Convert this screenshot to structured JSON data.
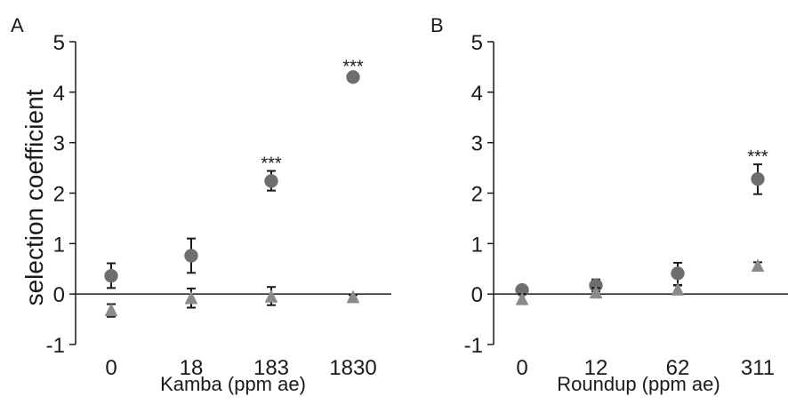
{
  "chart_data": [
    {
      "type": "scatter",
      "panel_label": "A",
      "title": "",
      "xlabel": "Kamba (ppm ae)",
      "ylabel": "selection coefficient",
      "categories": [
        "0",
        "18",
        "183",
        "1830"
      ],
      "ylim": [
        -1,
        5
      ],
      "yticks": [
        "-1",
        "0",
        "1",
        "2",
        "3",
        "4",
        "5"
      ],
      "zero_line": true,
      "series": [
        {
          "marker": "circle",
          "color": "#6e6e6e",
          "values": [
            0.36,
            0.76,
            2.24,
            4.3
          ],
          "err_low": [
            0.12,
            0.42,
            2.05,
            4.25
          ],
          "err_high": [
            0.61,
            1.1,
            2.44,
            4.36
          ]
        },
        {
          "marker": "triangle",
          "color": "#8a8a8a",
          "values": [
            -0.32,
            -0.08,
            -0.05,
            -0.06
          ],
          "err_low": [
            -0.45,
            -0.27,
            -0.22,
            -0.1
          ],
          "err_high": [
            -0.2,
            0.11,
            0.14,
            -0.02
          ]
        }
      ],
      "annotations": [
        {
          "category": "183",
          "text": "***"
        },
        {
          "category": "1830",
          "text": "***"
        }
      ]
    },
    {
      "type": "scatter",
      "panel_label": "B",
      "title": "",
      "xlabel": "Roundup (ppm ae)",
      "ylabel": "",
      "categories": [
        "0",
        "12",
        "62",
        "311"
      ],
      "ylim": [
        -1,
        5
      ],
      "yticks": [
        "-1",
        "0",
        "1",
        "2",
        "3",
        "4",
        "5"
      ],
      "zero_line": true,
      "series": [
        {
          "marker": "circle",
          "color": "#6e6e6e",
          "values": [
            0.08,
            0.17,
            0.41,
            2.28
          ],
          "err_low": [
            0.0,
            0.05,
            0.17,
            1.98
          ],
          "err_high": [
            0.17,
            0.29,
            0.62,
            2.57
          ]
        },
        {
          "marker": "triangle",
          "color": "#8a8a8a",
          "values": [
            -0.1,
            0.03,
            0.09,
            0.56
          ],
          "err_low": [
            -0.2,
            -0.02,
            0.0,
            0.49
          ],
          "err_high": [
            0.0,
            0.12,
            0.18,
            0.63
          ]
        }
      ],
      "annotations": [
        {
          "category": "311",
          "text": "***"
        }
      ]
    }
  ]
}
